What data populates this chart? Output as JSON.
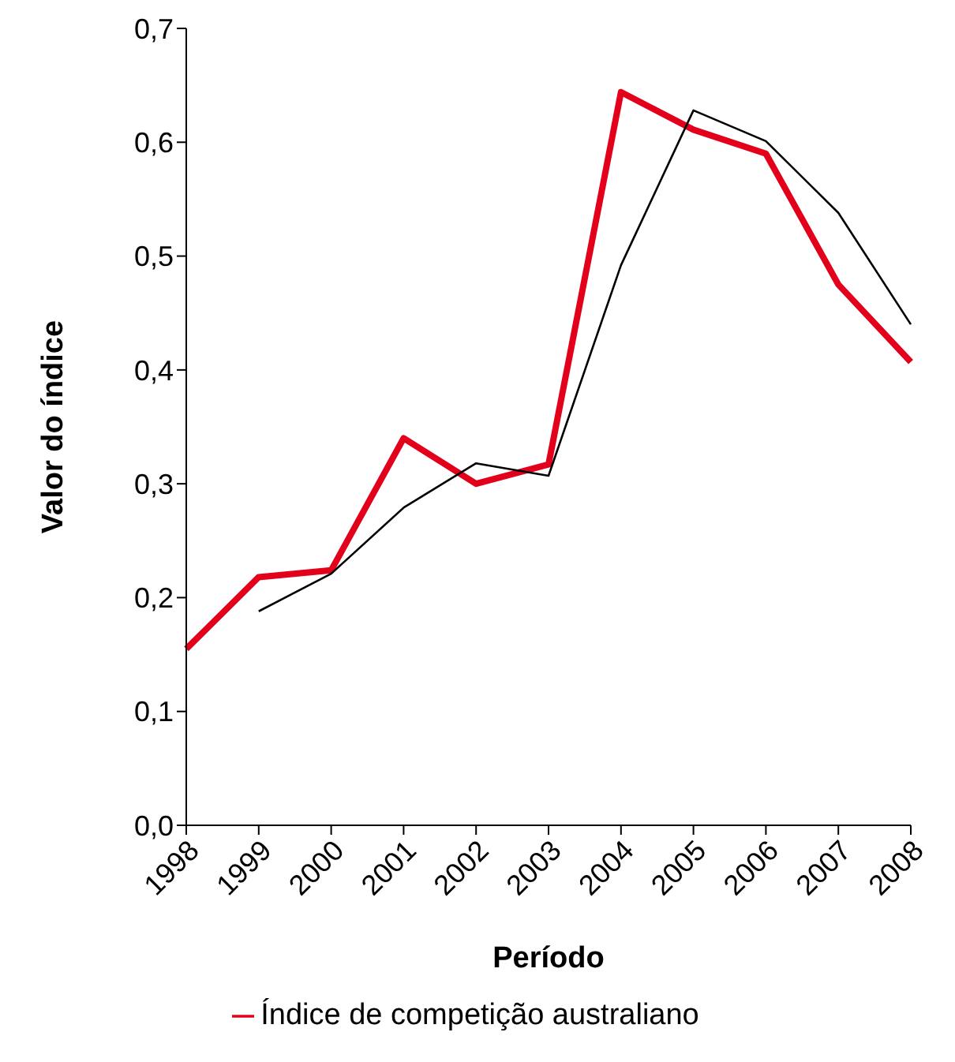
{
  "chart_data": {
    "type": "line",
    "xlabel": "Período",
    "ylabel": "Valor do índice",
    "categories": [
      "1998",
      "1999",
      "2000",
      "2001",
      "2002",
      "2003",
      "2004",
      "2005",
      "2006",
      "2007",
      "2008"
    ],
    "series": [
      {
        "name": "Índice de competição australiano",
        "color": "#e2001a",
        "values": [
          0.155,
          0.218,
          0.224,
          0.34,
          0.3,
          0.317,
          0.644,
          0.611,
          0.59,
          0.475,
          0.407
        ]
      },
      {
        "color": "#000000",
        "values": [
          null,
          0.188,
          0.221,
          0.279,
          0.318,
          0.307,
          0.492,
          0.628,
          0.601,
          0.538,
          0.44
        ]
      }
    ],
    "ylim": [
      0,
      0.7
    ],
    "yticks": [
      {
        "value": 0,
        "label": "0,0"
      },
      {
        "value": 0.1,
        "label": "0,1"
      },
      {
        "value": 0.2,
        "label": "0,2"
      },
      {
        "value": 0.3,
        "label": "0,3"
      },
      {
        "value": 0.4,
        "label": "0,4"
      },
      {
        "value": 0.5,
        "label": "0,5"
      },
      {
        "value": 0.6,
        "label": "0,6"
      },
      {
        "value": 0.7,
        "label": "0,7"
      }
    ],
    "grid": false,
    "legend": "bottom",
    "marker": "none",
    "line_style": "solid"
  }
}
